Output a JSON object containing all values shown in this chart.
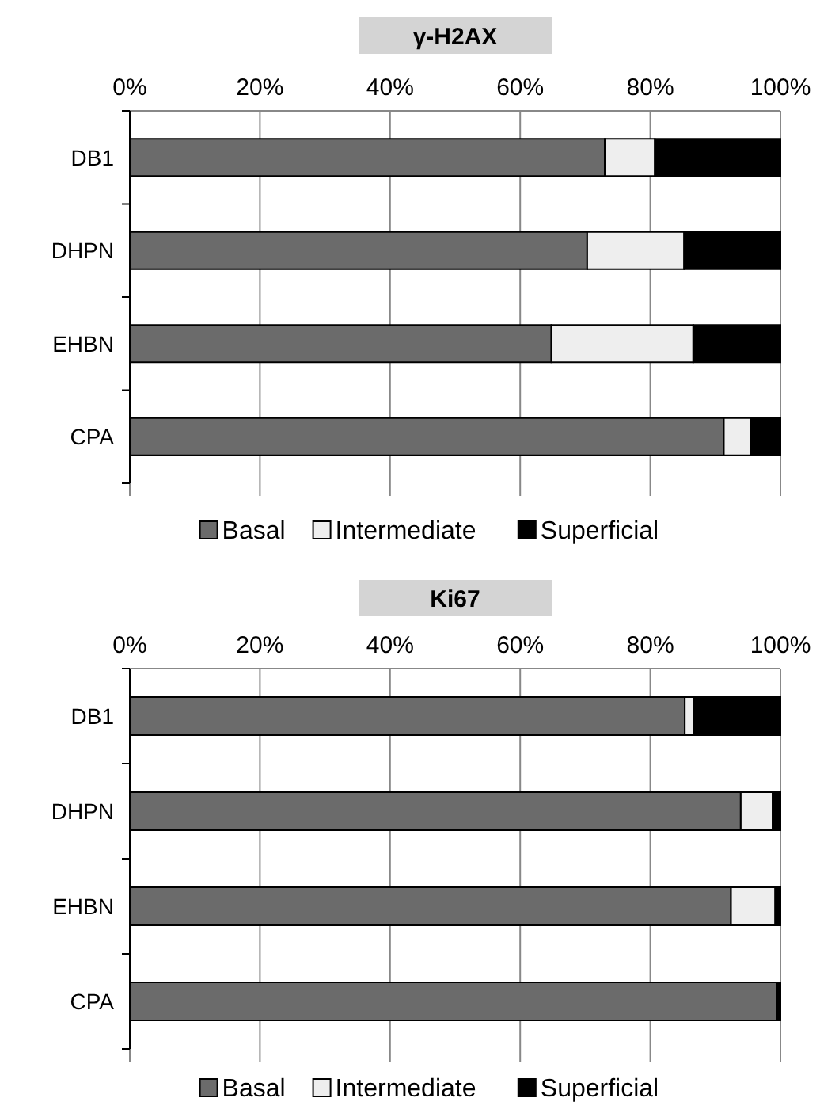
{
  "chart_data": [
    {
      "type": "bar",
      "orientation": "horizontal",
      "stacked": true,
      "title": "γ-H2AX",
      "categories": [
        "DB1",
        "DHPN",
        "EHBN",
        "CPA"
      ],
      "series": [
        {
          "name": "Basal",
          "color": "#6b6b6b",
          "values": [
            73.0,
            70.3,
            64.8,
            91.3
          ]
        },
        {
          "name": "Intermediate",
          "color": "#eeeeee",
          "values": [
            7.7,
            14.9,
            21.8,
            4.1
          ]
        },
        {
          "name": "Superficial",
          "color": "#000000",
          "values": [
            19.3,
            14.8,
            13.4,
            4.6
          ]
        }
      ],
      "xlim": [
        0,
        100
      ],
      "xticks": [
        {
          "value": 0,
          "label": "0%"
        },
        {
          "value": 20,
          "label": "20%"
        },
        {
          "value": 40,
          "label": "40%"
        },
        {
          "value": 60,
          "label": "60%"
        },
        {
          "value": 80,
          "label": "80%"
        },
        {
          "value": 100,
          "label": "100%"
        }
      ],
      "grid": "x",
      "legend": "bottom"
    },
    {
      "type": "bar",
      "orientation": "horizontal",
      "stacked": true,
      "title": "Ki67",
      "categories": [
        "DB1",
        "DHPN",
        "EHBN",
        "CPA"
      ],
      "series": [
        {
          "name": "Basal",
          "color": "#6b6b6b",
          "values": [
            85.3,
            93.9,
            92.4,
            99.4
          ]
        },
        {
          "name": "Intermediate",
          "color": "#eeeeee",
          "values": [
            1.4,
            4.9,
            6.8,
            0
          ]
        },
        {
          "name": "Superficial",
          "color": "#000000",
          "values": [
            13.3,
            1.2,
            0.8,
            0.6
          ]
        }
      ],
      "xlim": [
        0,
        100
      ],
      "xticks": [
        {
          "value": 0,
          "label": "0%"
        },
        {
          "value": 20,
          "label": "20%"
        },
        {
          "value": 40,
          "label": "40%"
        },
        {
          "value": 60,
          "label": "60%"
        },
        {
          "value": 80,
          "label": "80%"
        },
        {
          "value": 100,
          "label": "100%"
        }
      ],
      "grid": "x",
      "legend": "bottom"
    }
  ]
}
